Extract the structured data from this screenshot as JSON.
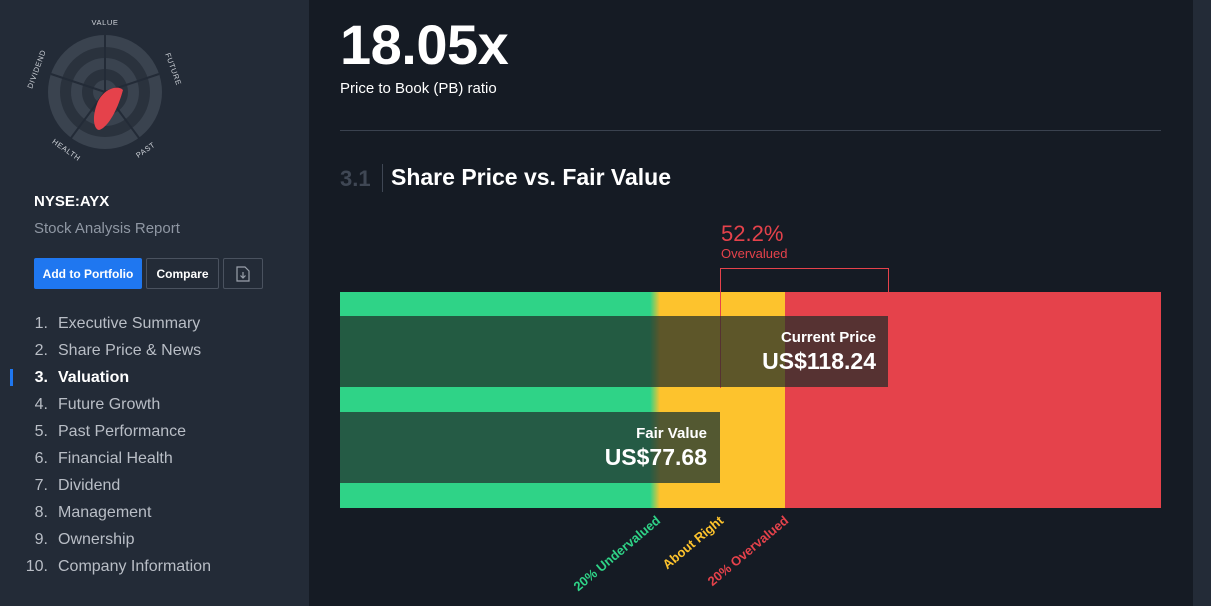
{
  "snowflake": {
    "labels": [
      "VALUE",
      "FUTURE",
      "PAST",
      "HEALTH",
      "DIVIDEND"
    ],
    "accent": "#e5424b"
  },
  "sidebar": {
    "ticker": "NYSE:AYX",
    "subtitle": "Stock Analysis Report",
    "add_label": "Add to Portfolio",
    "compare_label": "Compare",
    "download_icon": "download-icon",
    "nav": [
      {
        "num": "1.",
        "label": "Executive Summary"
      },
      {
        "num": "2.",
        "label": "Share Price & News"
      },
      {
        "num": "3.",
        "label": "Valuation"
      },
      {
        "num": "4.",
        "label": "Future Growth"
      },
      {
        "num": "5.",
        "label": "Past Performance"
      },
      {
        "num": "6.",
        "label": "Financial Health"
      },
      {
        "num": "7.",
        "label": "Dividend"
      },
      {
        "num": "8.",
        "label": "Management"
      },
      {
        "num": "9.",
        "label": "Ownership"
      },
      {
        "num": "10.",
        "label": "Company Information"
      }
    ],
    "active_index": 2
  },
  "main": {
    "ratio_value": "18.05x",
    "ratio_label": "Price to Book (PB) ratio",
    "section_num": "3.1",
    "section_title": "Share Price vs. Fair Value"
  },
  "valuation": {
    "pct": "52.2%",
    "pct_label": "Overvalued",
    "current_label": "Current Price",
    "current_value": "US$118.24",
    "fair_label": "Fair Value",
    "fair_value": "US$77.68",
    "zones": [
      "20% Undervalued",
      "About Right",
      "20% Overvalued"
    ],
    "colors": {
      "green": "#2fd387",
      "yellow": "#fdc32d",
      "red": "#e5424b"
    }
  }
}
